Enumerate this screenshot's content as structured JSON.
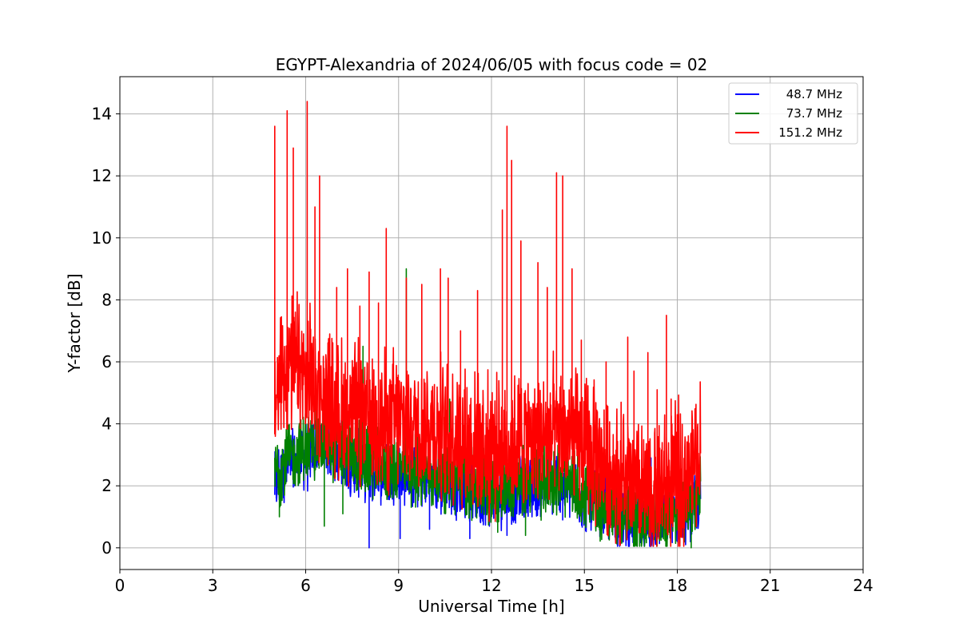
{
  "chart_data": {
    "type": "line",
    "title": "EGYPT-Alexandria of 2024/06/05 with focus code = 02",
    "xlabel": "Universal Time [h]",
    "ylabel": "Y-factor [dB]",
    "xlim": [
      0,
      24
    ],
    "ylim": [
      -0.7,
      15.2
    ],
    "xticks": [
      0,
      3,
      6,
      9,
      12,
      15,
      18,
      21,
      24
    ],
    "yticks": [
      0,
      2,
      4,
      6,
      8,
      10,
      12,
      14
    ],
    "grid": true,
    "legend_position": "top-right",
    "series": [
      {
        "name": "48.7 MHz",
        "color": "#0000ff",
        "x": [
          5.0,
          5.5,
          6.0,
          6.5,
          7.0,
          7.5,
          8.0,
          8.5,
          9.0,
          9.5,
          10.0,
          10.5,
          11.0,
          11.5,
          12.0,
          12.5,
          13.0,
          13.5,
          14.0,
          14.5,
          15.0,
          15.5,
          16.0,
          16.5,
          17.0,
          17.5,
          18.0,
          18.5,
          18.75
        ],
        "y": [
          2.0,
          2.6,
          2.8,
          3.4,
          3.0,
          2.6,
          2.5,
          2.4,
          2.3,
          2.2,
          2.1,
          2.0,
          1.9,
          1.7,
          1.6,
          1.7,
          1.8,
          1.9,
          2.0,
          1.9,
          1.5,
          1.2,
          1.0,
          0.8,
          0.7,
          0.9,
          1.1,
          1.3,
          1.5
        ],
        "spikes": [
          [
            5.05,
            1.6
          ],
          [
            6.6,
            3.6
          ],
          [
            8.05,
            0.0
          ],
          [
            9.05,
            0.3
          ],
          [
            10.0,
            0.6
          ],
          [
            11.3,
            0.3
          ],
          [
            12.5,
            0.4
          ],
          [
            14.3,
            0.9
          ],
          [
            17.15,
            2.9
          ],
          [
            17.35,
            3.1
          ]
        ]
      },
      {
        "name": "73.7 MHz",
        "color": "#008000",
        "x": [
          5.0,
          5.5,
          6.0,
          6.5,
          7.0,
          7.5,
          8.0,
          8.5,
          9.0,
          9.5,
          10.0,
          10.5,
          11.0,
          11.5,
          12.0,
          12.5,
          13.0,
          13.5,
          14.0,
          14.5,
          15.0,
          15.5,
          16.0,
          16.5,
          17.0,
          17.5,
          18.0,
          18.5,
          18.75
        ],
        "y": [
          2.4,
          2.8,
          3.1,
          3.3,
          3.0,
          2.8,
          2.7,
          2.6,
          2.5,
          2.4,
          2.3,
          2.2,
          2.1,
          1.9,
          1.8,
          1.9,
          2.0,
          2.1,
          2.1,
          2.0,
          1.6,
          1.3,
          1.1,
          0.9,
          0.8,
          1.0,
          1.2,
          1.4,
          1.6
        ],
        "spikes": [
          [
            5.15,
            1.0
          ],
          [
            6.6,
            0.7
          ],
          [
            7.2,
            1.1
          ],
          [
            7.85,
            6.5
          ],
          [
            9.25,
            9.0
          ],
          [
            10.65,
            4.8
          ],
          [
            12.2,
            0.5
          ],
          [
            13.1,
            0.4
          ],
          [
            18.45,
            0.0
          ]
        ]
      },
      {
        "name": "151.2 MHz",
        "color": "#ff0000",
        "x": [
          5.0,
          5.25,
          5.5,
          5.75,
          6.0,
          6.25,
          6.5,
          6.75,
          7.0,
          7.5,
          8.0,
          8.5,
          9.0,
          9.5,
          10.0,
          10.5,
          11.0,
          11.5,
          12.0,
          12.5,
          13.0,
          13.5,
          14.0,
          14.5,
          15.0,
          15.5,
          16.0,
          16.5,
          17.0,
          17.5,
          18.0,
          18.5,
          18.75
        ],
        "y": [
          4.5,
          5.5,
          5.8,
          5.5,
          5.2,
          5.0,
          4.8,
          4.5,
          4.3,
          4.2,
          4.0,
          3.9,
          3.8,
          3.8,
          3.7,
          3.6,
          3.4,
          3.2,
          3.0,
          3.2,
          3.3,
          3.4,
          3.5,
          3.4,
          3.0,
          2.6,
          2.2,
          1.8,
          1.5,
          1.7,
          2.0,
          2.5,
          3.0
        ],
        "spikes": [
          [
            5.0,
            13.6
          ],
          [
            5.4,
            14.1
          ],
          [
            5.6,
            12.9
          ],
          [
            6.05,
            14.4
          ],
          [
            6.45,
            12.0
          ],
          [
            6.3,
            11.0
          ],
          [
            7.0,
            8.4
          ],
          [
            7.35,
            9.0
          ],
          [
            7.75,
            7.8
          ],
          [
            8.05,
            8.9
          ],
          [
            8.35,
            7.9
          ],
          [
            8.6,
            10.3
          ],
          [
            9.25,
            8.7
          ],
          [
            9.75,
            8.5
          ],
          [
            10.35,
            9.0
          ],
          [
            10.6,
            8.7
          ],
          [
            11.0,
            7.0
          ],
          [
            11.55,
            8.3
          ],
          [
            12.35,
            10.9
          ],
          [
            12.5,
            13.6
          ],
          [
            12.65,
            12.5
          ],
          [
            12.95,
            9.9
          ],
          [
            13.5,
            9.2
          ],
          [
            13.8,
            8.4
          ],
          [
            14.1,
            12.1
          ],
          [
            14.3,
            12.0
          ],
          [
            14.6,
            9.0
          ],
          [
            14.9,
            6.7
          ],
          [
            15.7,
            6.0
          ],
          [
            16.4,
            6.8
          ],
          [
            16.6,
            5.7
          ],
          [
            17.05,
            6.3
          ],
          [
            17.35,
            5.1
          ],
          [
            17.65,
            7.5
          ],
          [
            17.8,
            4.8
          ],
          [
            18.0,
            4.3
          ]
        ]
      }
    ]
  }
}
